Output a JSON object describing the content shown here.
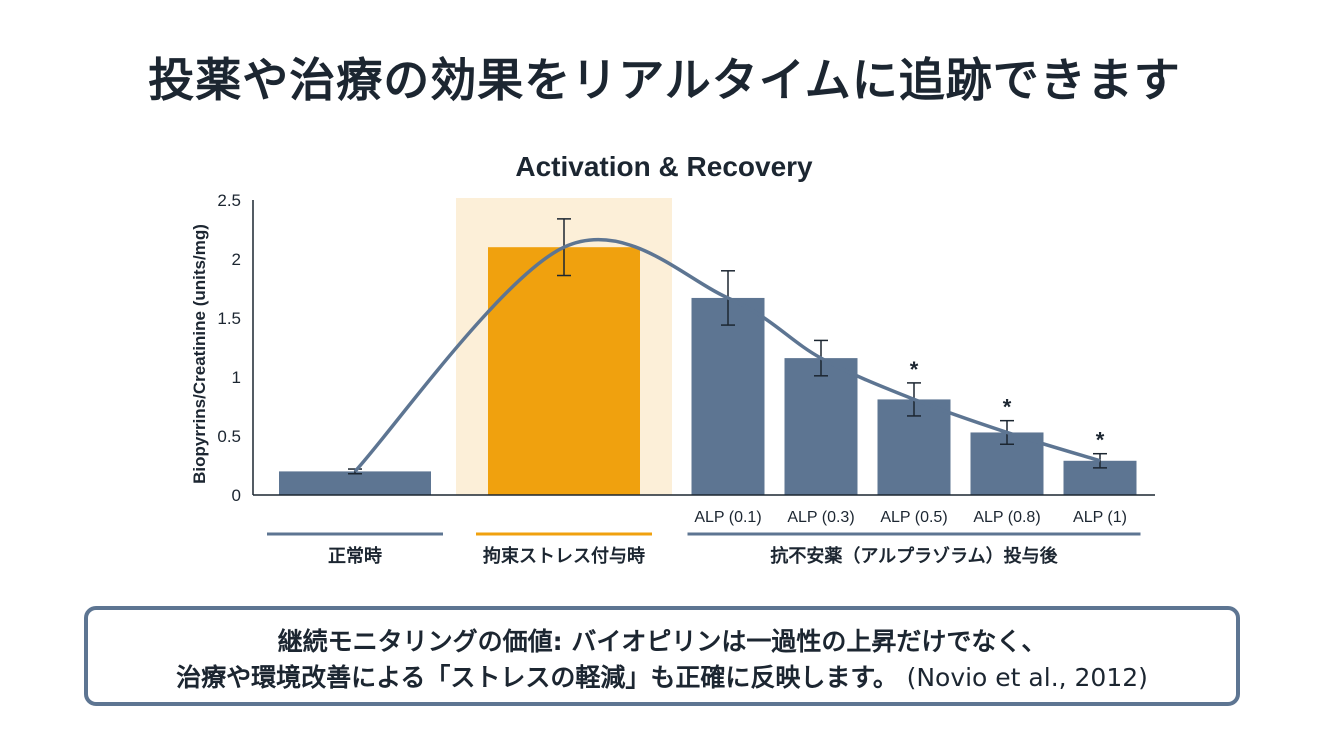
{
  "page": {
    "title": "投薬や治療の効果をリアルタイムに追跡できます"
  },
  "chart_data": {
    "type": "bar",
    "title": "Activation & Recovery",
    "ylabel": "Biopyrrins/Creatinine (units/mg)",
    "ylim": [
      0,
      2.5
    ],
    "yticks": [
      "0",
      "0.5",
      "1",
      "1.5",
      "2",
      "2.5"
    ],
    "grid": false,
    "categories": [
      "",
      "",
      "ALP (0.1)",
      "ALP (0.3)",
      "ALP (0.5)",
      "ALP (0.8)",
      "ALP (1)"
    ],
    "values": [
      0.2,
      2.1,
      1.67,
      1.16,
      0.81,
      0.53,
      0.29
    ],
    "errors": [
      0.02,
      0.24,
      0.23,
      0.15,
      0.14,
      0.1,
      0.06
    ],
    "significant": [
      false,
      false,
      false,
      false,
      true,
      true,
      true
    ],
    "significance_mark": "*",
    "trend_line": true,
    "highlighted_index": 1,
    "groups": [
      {
        "label": "正常時",
        "bars": [
          0
        ],
        "color": "#5d7592"
      },
      {
        "label": "拘束ストレス付与時",
        "bars": [
          1
        ],
        "color": "#f0a10e"
      },
      {
        "label": "抗不安薬（アルプラゾラム）投与後",
        "bars": [
          2,
          3,
          4,
          5,
          6
        ],
        "color": "#5d7592"
      }
    ],
    "colors": {
      "bar_default": "#5d7592",
      "bar_highlight": "#f0a10e",
      "highlight_band": "#fcefd8",
      "trend_line": "#5d7592",
      "axis": "#1c2631"
    }
  },
  "callout": {
    "line1": "継続モニタリングの価値: バイオピリンは一過性の上昇だけでなく、",
    "line2": "治療や環境改善による「ストレスの軽減」も正確に反映します。",
    "citation": "(Novio et al., 2012)"
  }
}
